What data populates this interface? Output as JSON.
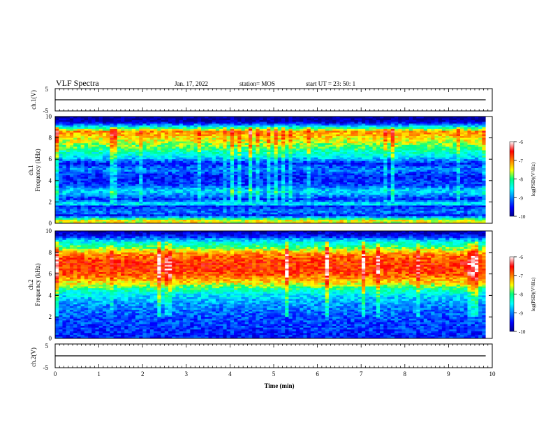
{
  "header": {
    "title": "VLF Spectra",
    "date": "Jan. 17, 2022",
    "station": "station= MOS",
    "start": "start UT = 23: 50: 1"
  },
  "chart_data": [
    {
      "type": "line",
      "ylabel": "ch.1(V)",
      "ylim": [
        -5,
        5
      ],
      "yticks": [
        "5",
        "-5"
      ],
      "series": [
        {
          "values": [
            0,
            0
          ]
        }
      ],
      "x": [
        0,
        9.85
      ]
    },
    {
      "type": "heatmap",
      "ylabel": "ch.1\nFrequency (kHz)",
      "xlim": [
        0,
        10
      ],
      "ylim": [
        0,
        10
      ],
      "yticks": [
        "0",
        "2",
        "4",
        "6",
        "8",
        "10"
      ],
      "colorbar": {
        "label": "log(PSD)(V²/Hz)",
        "ticks": [
          "-6",
          "-7",
          "-8",
          "-9",
          "-10"
        ],
        "range": [
          -10,
          -6
        ]
      },
      "profile": [
        [
          0.3,
          -7.5
        ],
        [
          0.7,
          -9.5
        ],
        [
          1.0,
          -9.0
        ],
        [
          1.6,
          -9.4
        ],
        [
          1.8,
          -8.3
        ],
        [
          2.2,
          -9.4
        ],
        [
          3.0,
          -8.6
        ],
        [
          3.6,
          -9.3
        ],
        [
          4.5,
          -9.4
        ],
        [
          5.0,
          -9.0
        ],
        [
          5.6,
          -9.4
        ],
        [
          6.2,
          -8.6
        ],
        [
          7.0,
          -8.0
        ],
        [
          7.6,
          -7.6
        ],
        [
          8.2,
          -7.3
        ],
        [
          8.6,
          -7.1
        ],
        [
          9.0,
          -8.4
        ],
        [
          9.5,
          -9.8
        ],
        [
          10.0,
          -10
        ]
      ]
    },
    {
      "type": "heatmap",
      "ylabel": "ch.2\nFrequency (kHz)",
      "xlim": [
        0,
        10
      ],
      "ylim": [
        0,
        10
      ],
      "yticks": [
        "0",
        "2",
        "4",
        "6",
        "8",
        "10"
      ],
      "colorbar": {
        "label": "log(PSD)(V²/Hz)",
        "ticks": [
          "-6",
          "-7",
          "-8",
          "-9",
          "-10"
        ],
        "range": [
          -10,
          -6
        ]
      },
      "profile": [
        [
          0.3,
          -9.4
        ],
        [
          1.0,
          -9.3
        ],
        [
          2.0,
          -9.2
        ],
        [
          3.0,
          -9.0
        ],
        [
          4.0,
          -8.6
        ],
        [
          4.6,
          -8.1
        ],
        [
          5.2,
          -7.4
        ],
        [
          6.0,
          -6.8
        ],
        [
          7.0,
          -6.7
        ],
        [
          7.8,
          -7.0
        ],
        [
          8.4,
          -7.8
        ],
        [
          9.0,
          -8.5
        ],
        [
          9.5,
          -9.4
        ],
        [
          10.0,
          -9.9
        ]
      ]
    },
    {
      "type": "line",
      "ylabel": "ch.2(V)",
      "xlabel": "Time (min)",
      "xlim": [
        0,
        10
      ],
      "xticks": [
        "0",
        "1",
        "2",
        "3",
        "4",
        "5",
        "6",
        "7",
        "8",
        "9",
        "10"
      ],
      "ylim": [
        -5,
        5
      ],
      "yticks": [
        "5",
        "-5"
      ],
      "series": [
        {
          "values": [
            0,
            0
          ]
        }
      ],
      "x": [
        0,
        9.85
      ]
    }
  ]
}
